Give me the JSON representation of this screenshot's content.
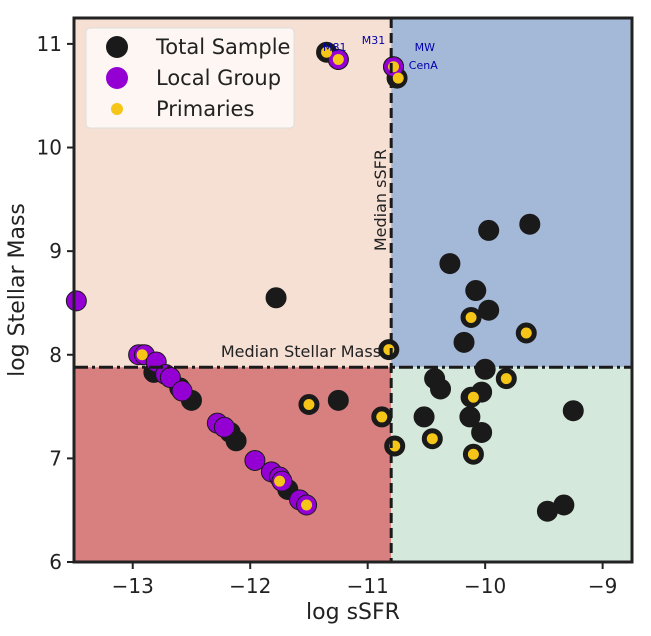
{
  "chart_data": {
    "type": "scatter",
    "xlabel": "log sSFR",
    "ylabel": "log Stellar Mass",
    "xlim": [
      -13.5,
      -8.75
    ],
    "ylim": [
      6,
      11.25
    ],
    "xticks": [
      -13,
      -12,
      -11,
      -10,
      -9
    ],
    "xtick_labels": [
      "−13",
      "−12",
      "−11",
      "−10",
      "−9"
    ],
    "yticks": [
      6,
      7,
      8,
      9,
      10,
      11
    ],
    "ytick_labels": [
      "6",
      "7",
      "8",
      "9",
      "10",
      "11"
    ],
    "median_ssfr": -10.8,
    "median_mass": 7.88,
    "median_ssfr_label": "Median sSFR",
    "median_mass_label": "Median Stellar Mass",
    "quadrant_colors": {
      "top_left": "#f6e0d4",
      "top_right": "#a4b8d8",
      "bottom_left": "#d88080",
      "bottom_right": "#d5e8dc"
    },
    "legend": {
      "position": "top-left",
      "entries": [
        {
          "label": "Total Sample",
          "color": "#1a1a1a"
        },
        {
          "label": "Local Group",
          "color": "#9400d3"
        },
        {
          "label": "Primaries",
          "color": "#f5c518"
        }
      ]
    },
    "series": [
      {
        "name": "Total Sample",
        "color": "#1a1a1a",
        "points": [
          [
            -11.35,
            10.92
          ],
          [
            -11.25,
            10.85
          ],
          [
            -10.78,
            10.78
          ],
          [
            -10.75,
            10.67
          ],
          [
            -11.78,
            8.55
          ],
          [
            -10.82,
            8.05
          ],
          [
            -9.62,
            9.26
          ],
          [
            -9.97,
            9.2
          ],
          [
            -10.3,
            8.88
          ],
          [
            -10.08,
            8.62
          ],
          [
            -9.97,
            8.43
          ],
          [
            -10.12,
            8.36
          ],
          [
            -9.65,
            8.21
          ],
          [
            -10.18,
            8.12
          ],
          [
            -10.0,
            7.86
          ],
          [
            -10.43,
            7.77
          ],
          [
            -10.38,
            7.67
          ],
          [
            -10.03,
            7.64
          ],
          [
            -9.82,
            7.77
          ],
          [
            -10.12,
            7.59
          ],
          [
            -10.13,
            7.4
          ],
          [
            -10.03,
            7.25
          ],
          [
            -10.52,
            7.4
          ],
          [
            -10.45,
            7.19
          ],
          [
            -10.1,
            7.04
          ],
          [
            -10.77,
            7.12
          ],
          [
            -10.88,
            7.4
          ],
          [
            -9.25,
            7.46
          ],
          [
            -9.47,
            6.49
          ],
          [
            -9.33,
            6.55
          ],
          [
            -11.25,
            7.56
          ],
          [
            -11.5,
            7.52
          ],
          [
            -12.12,
            7.17
          ],
          [
            -12.17,
            7.25
          ],
          [
            -11.68,
            6.7
          ],
          [
            -12.5,
            7.56
          ],
          [
            -12.6,
            7.68
          ],
          [
            -12.82,
            7.83
          ],
          [
            -12.92,
            8.0
          ]
        ]
      },
      {
        "name": "Local Group",
        "color": "#9400d3",
        "points": [
          [
            -13.48,
            8.52
          ],
          [
            -12.95,
            8.0
          ],
          [
            -12.9,
            8.0
          ],
          [
            -12.8,
            7.93
          ],
          [
            -12.72,
            7.81
          ],
          [
            -12.68,
            7.78
          ],
          [
            -12.58,
            7.65
          ],
          [
            -12.28,
            7.34
          ],
          [
            -12.22,
            7.3
          ],
          [
            -11.96,
            6.98
          ],
          [
            -11.82,
            6.87
          ],
          [
            -11.75,
            6.82
          ],
          [
            -11.73,
            6.78
          ],
          [
            -11.58,
            6.6
          ],
          [
            -11.52,
            6.55
          ],
          [
            -11.25,
            10.85
          ],
          [
            -10.78,
            10.78
          ]
        ]
      },
      {
        "name": "Primaries",
        "color": "#f5c518",
        "points": [
          [
            -11.35,
            10.92
          ],
          [
            -11.25,
            10.85
          ],
          [
            -10.78,
            10.78
          ],
          [
            -10.74,
            10.67
          ],
          [
            -10.82,
            8.05
          ],
          [
            -12.92,
            8.0
          ],
          [
            -11.75,
            6.78
          ],
          [
            -11.52,
            6.55
          ],
          [
            -11.5,
            7.52
          ],
          [
            -10.88,
            7.4
          ],
          [
            -10.77,
            7.12
          ],
          [
            -10.45,
            7.19
          ],
          [
            -10.1,
            7.04
          ],
          [
            -10.1,
            7.59
          ],
          [
            -9.82,
            7.77
          ],
          [
            -10.12,
            8.36
          ],
          [
            -9.65,
            8.21
          ]
        ]
      }
    ],
    "annotations": [
      {
        "text": "M31",
        "x": -11.05,
        "y": 11.0
      },
      {
        "text": "M81",
        "x": -11.38,
        "y": 10.93
      },
      {
        "text": "MW",
        "x": -10.6,
        "y": 10.93
      },
      {
        "text": "CenA",
        "x": -10.65,
        "y": 10.76
      }
    ]
  }
}
